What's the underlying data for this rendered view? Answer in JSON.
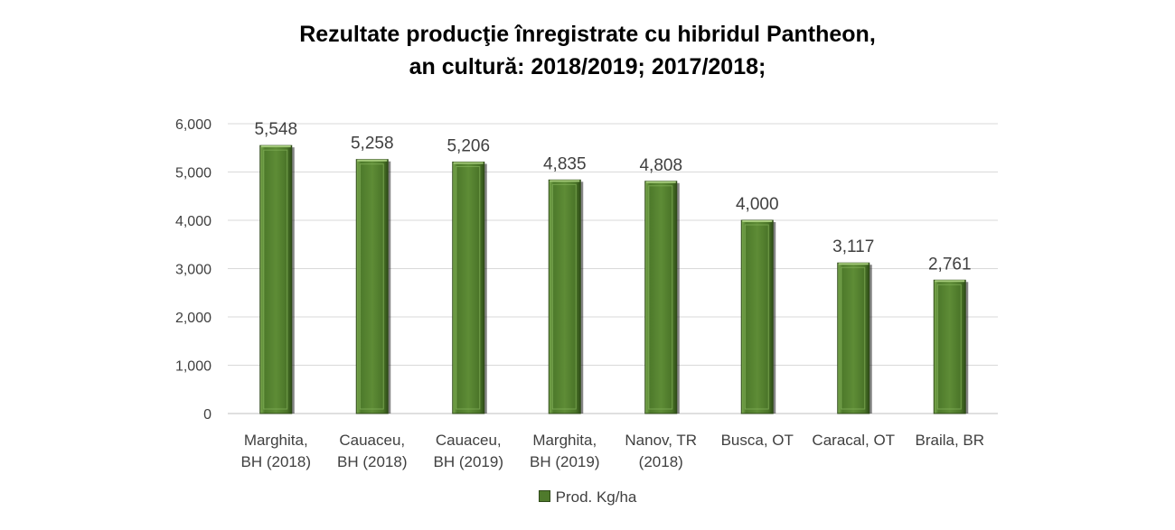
{
  "chart_data": {
    "type": "bar",
    "title_line1": "Rezultate producţie înregistrate cu hibridul Pantheon,",
    "title_line2": "an cultură: 2018/2019; 2017/2018;",
    "categories": [
      [
        "Marghita,",
        "BH (2018)"
      ],
      [
        "Cauaceu,",
        "BH (2018)"
      ],
      [
        "Cauaceu,",
        "BH (2019)"
      ],
      [
        "Marghita,",
        "BH (2019)"
      ],
      [
        "Nanov, TR",
        "(2018)"
      ],
      [
        "Busca, OT"
      ],
      [
        "Caracal, OT"
      ],
      [
        "Braila, BR"
      ]
    ],
    "series": [
      {
        "name": "Prod. Kg/ha",
        "values": [
          5548,
          5258,
          5206,
          4835,
          4808,
          4000,
          3117,
          2761
        ],
        "value_labels": [
          "5,548",
          "5,258",
          "5,206",
          "4,835",
          "4,808",
          "4,000",
          "3,117",
          "2,761"
        ]
      }
    ],
    "ylim": [
      0,
      6000
    ],
    "yticks": [
      0,
      1000,
      2000,
      3000,
      4000,
      5000,
      6000
    ],
    "ytick_labels": [
      "0",
      "1,000",
      "2,000",
      "3,000",
      "4,000",
      "5,000",
      "6,000"
    ],
    "grid": true,
    "legend_position": "bottom",
    "bar_color": "#4f7a2c"
  }
}
